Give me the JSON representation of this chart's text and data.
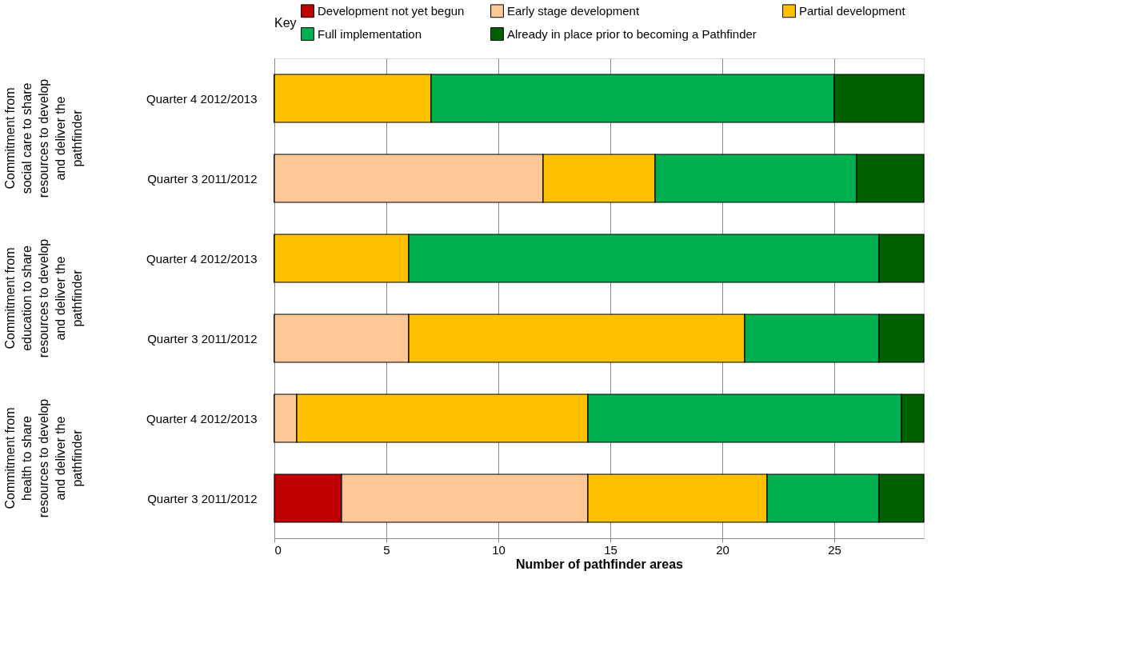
{
  "chart_data": {
    "type": "bar",
    "orientation": "horizontal",
    "stacked": true,
    "categories": [
      "Quarter 4  2012/2013",
      "Quarter 3 2011/2012",
      "Quarter 4  2012/2013",
      "Quarter 3 2011/2012",
      "Quarter 4  2012/2013",
      "Quarter 3 2011/2012"
    ],
    "series": [
      {
        "name": "Development not yet begun",
        "color": "#c00000",
        "values": [
          0,
          0,
          0,
          0,
          0,
          3
        ]
      },
      {
        "name": "Early stage development",
        "color": "#fcc896",
        "values": [
          0,
          12,
          0,
          6,
          1,
          11
        ]
      },
      {
        "name": "Partial development",
        "color": "#ffc000",
        "values": [
          7,
          5,
          6,
          15,
          13,
          8
        ]
      },
      {
        "name": "Full implementation",
        "color": "#00b050",
        "values": [
          18,
          9,
          21,
          6,
          14,
          5
        ]
      },
      {
        "name": "Already in place prior to becoming a Pathfinder",
        "color": "#006100",
        "values": [
          4,
          3,
          2,
          2,
          1,
          2
        ]
      }
    ],
    "xlabel": "Number of pathfinder areas",
    "legend_title": "Key",
    "legend": "top",
    "xlim": [
      0,
      29
    ],
    "xticks": [
      0,
      5,
      10,
      15,
      20,
      25
    ],
    "grid": "x",
    "annotations": [
      "Commitment from social care to share resources to develop and deliver the pathfinder",
      "Commitment from education to share resources to develop and deliver the pathfinder",
      "Commitment from health to share resources to develop and deliver the pathfinder"
    ]
  }
}
